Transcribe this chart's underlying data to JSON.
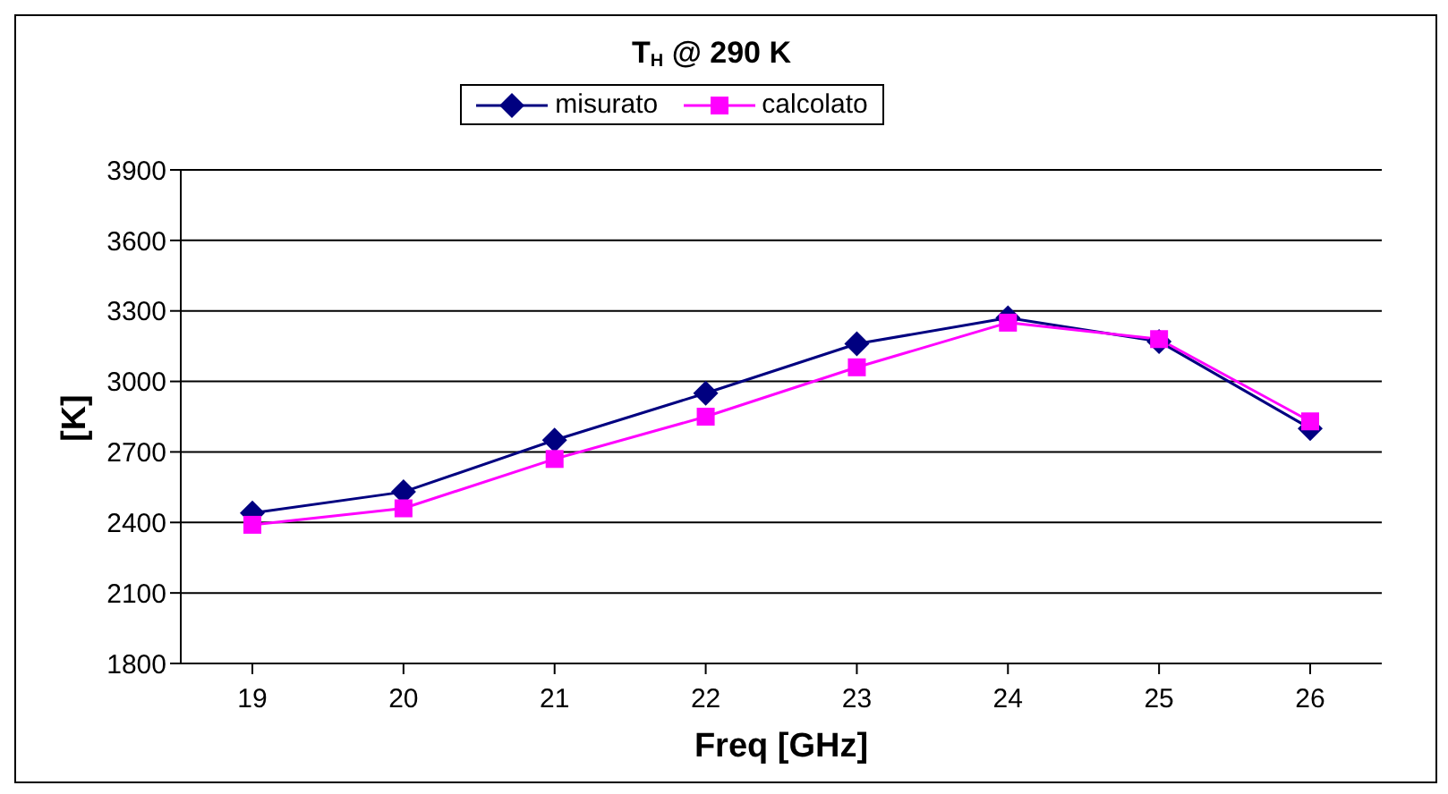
{
  "chart_data": {
    "type": "line",
    "title": "T$_{H}$ @ 290 K",
    "xlabel": "Freq [GHz]",
    "ylabel": "[K]",
    "categories": [
      "19",
      "20",
      "21",
      "22",
      "23",
      "24",
      "25",
      "26"
    ],
    "series": [
      {
        "name": "misurato",
        "color": "#000080",
        "values": [
          2440,
          2530,
          2750,
          2950,
          3160,
          3270,
          3170,
          2800
        ],
        "marker": "diamond"
      },
      {
        "name": "calcolato",
        "color": "#ff00ff",
        "values": [
          2390,
          2460,
          2670,
          2850,
          3060,
          3250,
          3180,
          2830
        ],
        "marker": "square"
      }
    ],
    "ylim": [
      1800,
      3900
    ],
    "yticks": [
      1800,
      2100,
      2400,
      2700,
      3000,
      3300,
      3600,
      3900
    ],
    "grid": "y",
    "legend": "top",
    "line_style": "solid"
  }
}
